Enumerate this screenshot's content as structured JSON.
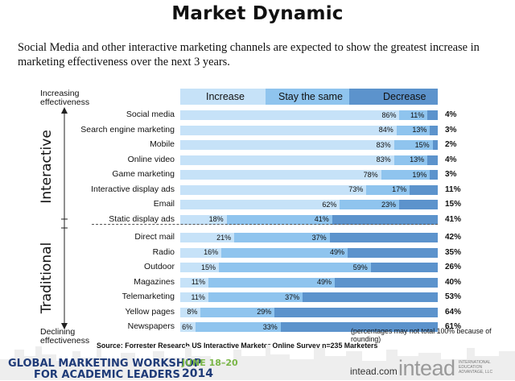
{
  "page": {
    "title": "Market Dynamic",
    "subtitle": "Social Media and other interactive marketing channels are expected to show the greatest increase in marketing effectiveness over the next 3 years.",
    "top_note": "Increasing effectiveness",
    "bottom_note": "Declining effectiveness",
    "group_interactive": "Interactive",
    "group_traditional": "Traditional",
    "rounding_note": "(percentages may not total 100% because of rounding)",
    "source": "Source: Forrester Research US Interactive Marketer Online Survey n=235 Marketers"
  },
  "colors": {
    "increase": "#c6e2f8",
    "stay": "#8fc4ee",
    "decrease": "#5c93cc"
  },
  "chart_data": {
    "type": "bar",
    "stacked": true,
    "orientation": "horizontal",
    "xlim": [
      0,
      100
    ],
    "legend": [
      "Increase",
      "Stay the same",
      "Decrease"
    ],
    "legend_position": "top",
    "categories": [
      "Social media",
      "Search engine marketing",
      "Mobile",
      "Online video",
      "Game marketing",
      "Interactive display ads",
      "Email",
      "Static display ads",
      "Direct mail",
      "Radio",
      "Outdoor",
      "Magazines",
      "Telemarketing",
      "Yellow pages",
      "Newspapers"
    ],
    "series": [
      {
        "name": "Increase",
        "values": [
          86,
          84,
          83,
          83,
          78,
          73,
          62,
          18,
          21,
          16,
          15,
          11,
          11,
          8,
          6
        ]
      },
      {
        "name": "Stay the same",
        "values": [
          11,
          13,
          15,
          13,
          19,
          17,
          23,
          41,
          37,
          49,
          59,
          49,
          37,
          29,
          33
        ]
      },
      {
        "name": "Decrease",
        "values": [
          4,
          3,
          2,
          4,
          3,
          11,
          15,
          41,
          42,
          35,
          26,
          40,
          53,
          64,
          61
        ]
      }
    ],
    "groups": [
      {
        "name": "Interactive",
        "count": 8
      },
      {
        "name": "Traditional",
        "count": 7
      }
    ]
  },
  "footer": {
    "line1": "GLOBAL MARKETING WORKSHOP",
    "line2": "FOR ACADEMIC LEADERS",
    "dates": "JUNE 18–20",
    "year": "2014",
    "site": "intead.com",
    "brand": "intead",
    "brand_tag": "INTERNATIONAL EDUCATION ADVANTAGE, LLC"
  }
}
